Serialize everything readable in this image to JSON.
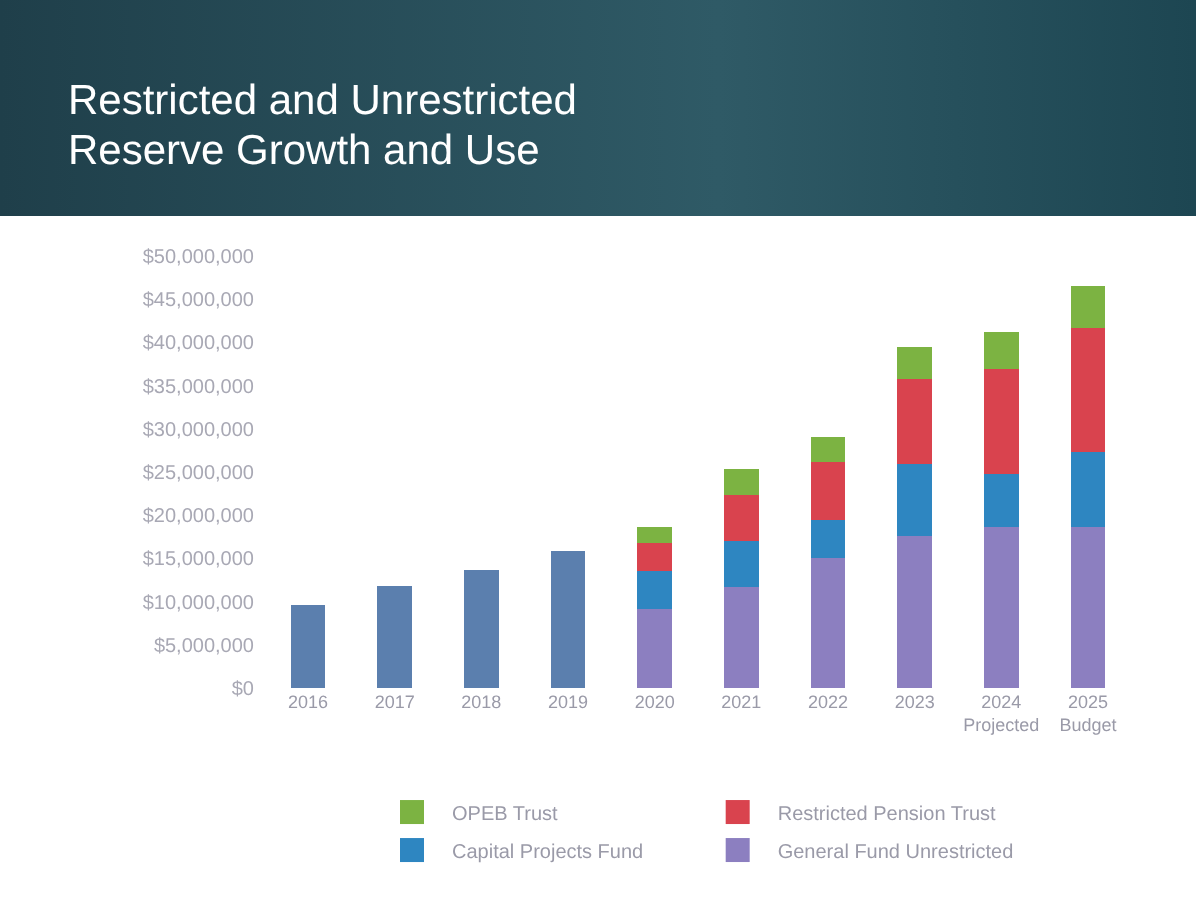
{
  "chart_data": {
    "type": "bar",
    "title": "Restricted and Unrestricted\nReserve Growth and Use",
    "stacked": true,
    "legend": "bottom",
    "grid": false,
    "categories": [
      "2016",
      "2017",
      "2018",
      "2019",
      "2020",
      "2021",
      "2022",
      "2023",
      "2024\nProjected",
      "2025\nBudget"
    ],
    "ylim": [
      0,
      50000000
    ],
    "yticks": [
      {
        "value": 0,
        "label": "$0"
      },
      {
        "value": 5000000,
        "label": "$5,000,000"
      },
      {
        "value": 10000000,
        "label": "$10,000,000"
      },
      {
        "value": 15000000,
        "label": "$15,000,000"
      },
      {
        "value": 20000000,
        "label": "$20,000,000"
      },
      {
        "value": 25000000,
        "label": "$25,000,000"
      },
      {
        "value": 30000000,
        "label": "$30,000,000"
      },
      {
        "value": 35000000,
        "label": "$35,000,000"
      },
      {
        "value": 40000000,
        "label": "$40,000,000"
      },
      {
        "value": 45000000,
        "label": "$45,000,000"
      },
      {
        "value": 50000000,
        "label": "$50,000,000"
      }
    ],
    "series": [
      {
        "color": "#5b7fae",
        "values": [
          9600000,
          11800000,
          13700000,
          15900000,
          null,
          null,
          null,
          null,
          null,
          null
        ]
      },
      {
        "name": "General Fund Unrestricted",
        "color": "#8c7fc0",
        "values": [
          null,
          null,
          null,
          null,
          9200000,
          11700000,
          15100000,
          17600000,
          18600000,
          18600000
        ]
      },
      {
        "name": "Capital Projects Fund",
        "color": "#2e86c1",
        "values": [
          null,
          null,
          null,
          null,
          4300000,
          5300000,
          4300000,
          8300000,
          6200000,
          8700000
        ]
      },
      {
        "name": "Restricted Pension Trust",
        "color": "#d9434e",
        "values": [
          null,
          null,
          null,
          null,
          3300000,
          5300000,
          6800000,
          9900000,
          12100000,
          14400000
        ]
      },
      {
        "name": "OPEB Trust",
        "color": "#7cb342",
        "values": [
          null,
          null,
          null,
          null,
          1800000,
          3000000,
          2800000,
          3700000,
          4300000,
          4800000
        ]
      }
    ]
  }
}
